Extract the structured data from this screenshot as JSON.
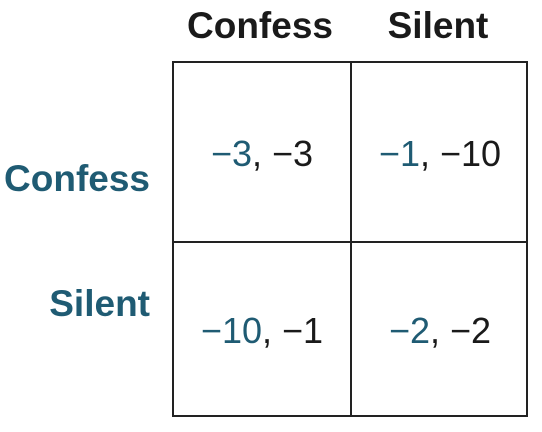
{
  "colors": {
    "row_header": "#1f5b73",
    "player1_payoff": "#1f5b73",
    "player2_payoff": "#1a1a1a",
    "grid_line": "#222222"
  },
  "columns": [
    {
      "label": "Confess"
    },
    {
      "label": "Silent"
    }
  ],
  "rows": [
    {
      "label": "Confess"
    },
    {
      "label": "Silent"
    }
  ],
  "cells": [
    [
      {
        "p1": "−3",
        "p2": "−3"
      },
      {
        "p1": "−1",
        "p2": "−10"
      }
    ],
    [
      {
        "p1": "−10",
        "p2": "−1"
      },
      {
        "p1": "−2",
        "p2": "−2"
      }
    ]
  ],
  "separator": ", "
}
